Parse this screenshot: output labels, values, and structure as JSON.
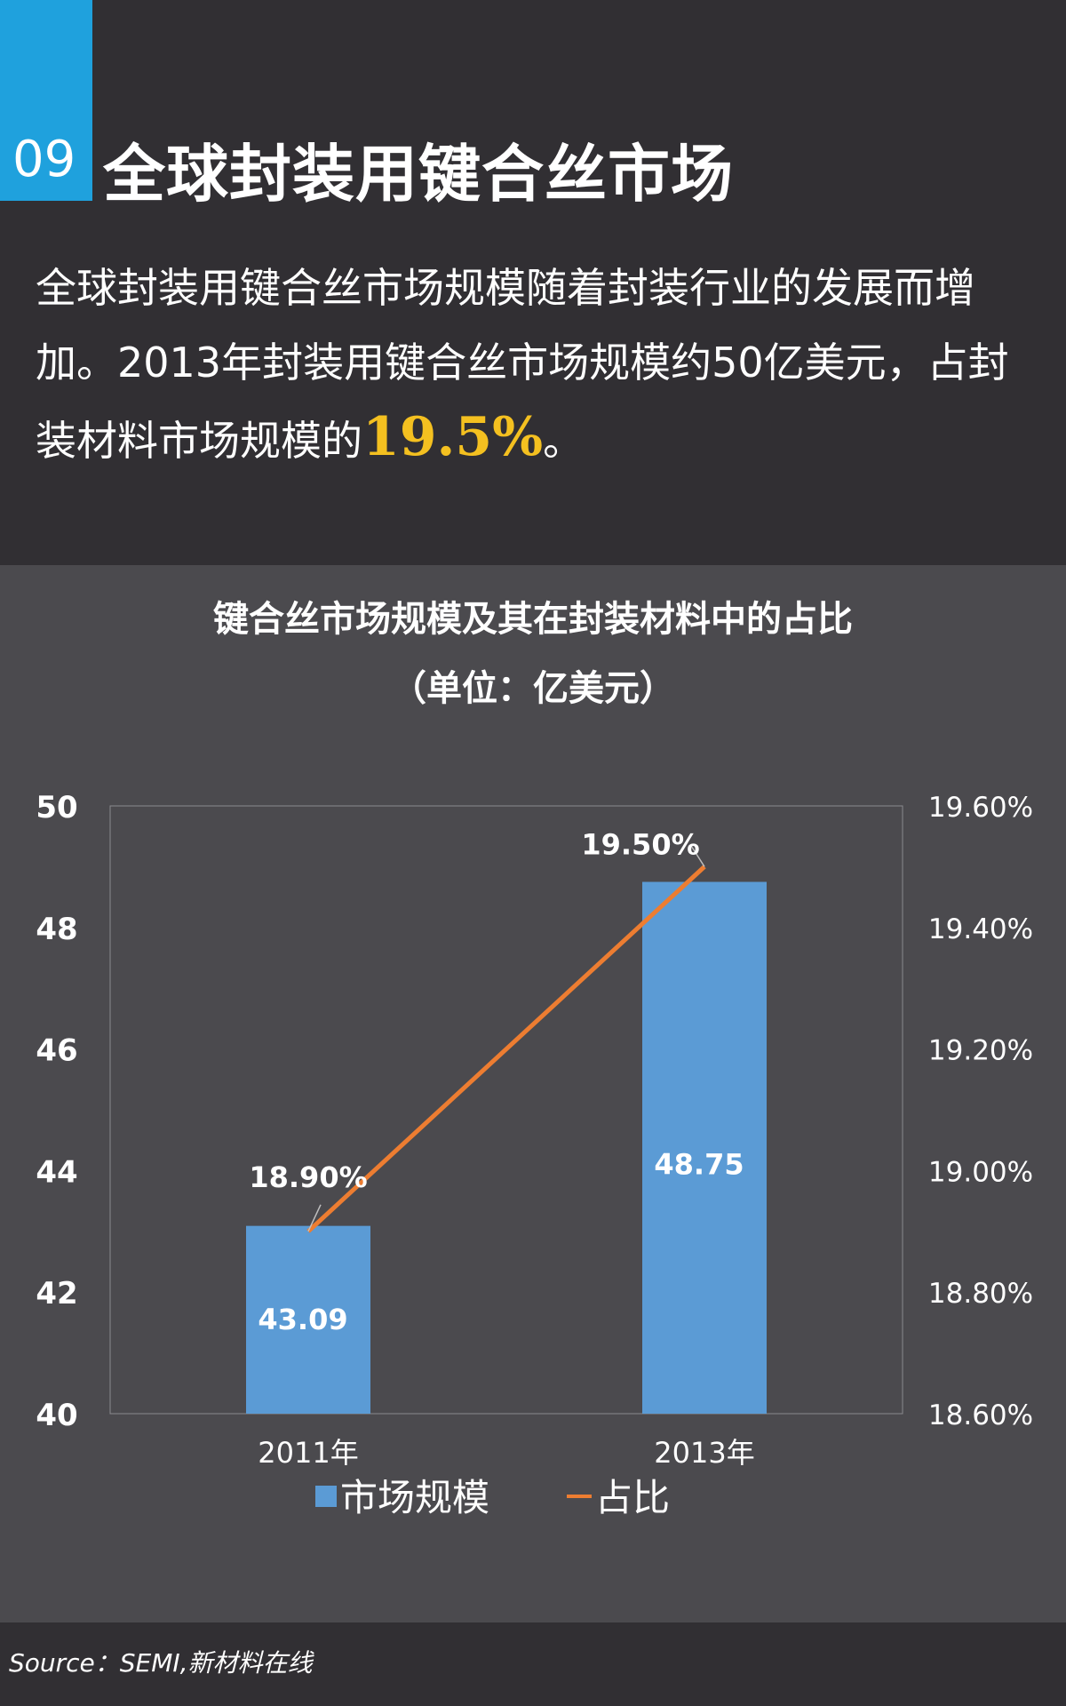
{
  "badge": "09",
  "title": "全球封装用键合丝市场",
  "intro": {
    "text": "全球封装用键合丝市场规模随着封装行业的发展而增加。2013年封装用键合丝市场规模约50亿美元，占封装材料市场规模的",
    "highlight": "19.5%",
    "end": "。"
  },
  "colors": {
    "bar": "#5b9bd5",
    "line": "#ed7d31",
    "highlight": "#f4c020",
    "badge": "#1fa1dd"
  },
  "chart_data": {
    "type": "bar",
    "title": "键合丝市场规模及其在封装材料中的占比",
    "subtitle": "（单位：亿美元）",
    "categories": [
      "2011年",
      "2013年"
    ],
    "series": [
      {
        "name": "市场规模",
        "type": "bar",
        "axis": "left",
        "values": [
          43.09,
          48.75
        ],
        "labels": [
          "43.09",
          "48.75"
        ]
      },
      {
        "name": "占比",
        "type": "line",
        "axis": "right",
        "values": [
          18.9,
          19.5
        ],
        "labels": [
          "18.90%",
          "19.50%"
        ]
      }
    ],
    "y_left": {
      "ylim": [
        40,
        50
      ],
      "ticks": [
        "40",
        "42",
        "44",
        "46",
        "48",
        "50"
      ]
    },
    "y_right": {
      "ylim": [
        18.6,
        19.6
      ],
      "ticks": [
        "18.60%",
        "18.80%",
        "19.00%",
        "19.20%",
        "19.40%",
        "19.60%"
      ]
    },
    "legend_position": "bottom",
    "grid": false
  },
  "source": "Source：SEMI,新材料在线"
}
